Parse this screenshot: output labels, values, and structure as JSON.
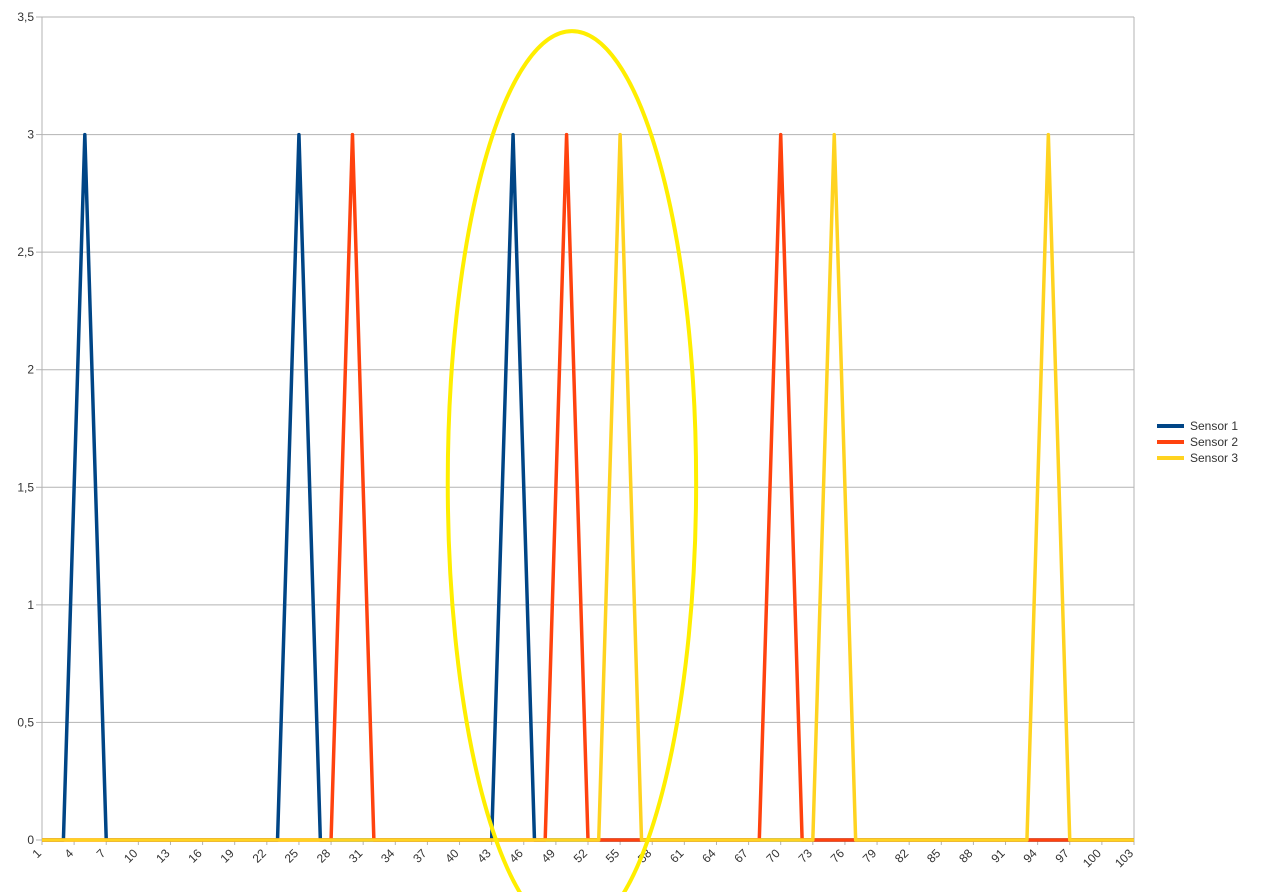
{
  "chart_data": {
    "type": "line",
    "title": "",
    "xlabel": "",
    "ylabel": "",
    "xlim": [
      1,
      103
    ],
    "ylim": [
      0,
      3.5
    ],
    "grid": "horizontal",
    "legend_position": "right",
    "x_tick_labels": [
      "1",
      "4",
      "7",
      "10",
      "13",
      "16",
      "19",
      "22",
      "25",
      "28",
      "31",
      "34",
      "37",
      "40",
      "43",
      "46",
      "49",
      "52",
      "55",
      "58",
      "61",
      "64",
      "67",
      "70",
      "73",
      "76",
      "79",
      "82",
      "85",
      "88",
      "91",
      "94",
      "97",
      "100",
      "103"
    ],
    "y_tick_labels": [
      "0",
      "0,5",
      "1",
      "1,5",
      "2",
      "2,5",
      "3",
      "3,5"
    ],
    "y_tick_values": [
      0,
      0.5,
      1,
      1.5,
      2,
      2.5,
      3,
      3.5
    ],
    "series": [
      {
        "name": "Sensor 1",
        "color": "#004586",
        "points": [
          [
            1,
            0
          ],
          [
            2,
            0
          ],
          [
            3,
            0
          ],
          [
            5,
            3
          ],
          [
            7,
            0
          ],
          [
            8,
            0
          ],
          [
            22,
            0
          ],
          [
            23,
            0
          ],
          [
            25,
            3
          ],
          [
            27,
            0
          ],
          [
            28,
            0
          ],
          [
            42,
            0
          ],
          [
            43,
            0
          ],
          [
            45,
            3
          ],
          [
            47,
            0
          ],
          [
            48,
            0
          ],
          [
            103,
            0
          ]
        ]
      },
      {
        "name": "Sensor 2",
        "color": "#ff420e",
        "points": [
          [
            1,
            0
          ],
          [
            27,
            0
          ],
          [
            28,
            0
          ],
          [
            30,
            3
          ],
          [
            32,
            0
          ],
          [
            33,
            0
          ],
          [
            47,
            0
          ],
          [
            48,
            0
          ],
          [
            50,
            3
          ],
          [
            52,
            0
          ],
          [
            53,
            0
          ],
          [
            67,
            0
          ],
          [
            68,
            0
          ],
          [
            70,
            3
          ],
          [
            72,
            0
          ],
          [
            73,
            0
          ],
          [
            103,
            0
          ]
        ]
      },
      {
        "name": "Sensor 3",
        "color": "#ffd320",
        "points": [
          [
            1,
            0
          ],
          [
            52,
            0
          ],
          [
            53,
            0
          ],
          [
            55,
            3
          ],
          [
            57,
            0
          ],
          [
            58,
            0
          ],
          [
            72,
            0
          ],
          [
            73,
            0
          ],
          [
            75,
            3
          ],
          [
            77,
            0
          ],
          [
            78,
            0
          ],
          [
            92,
            0
          ],
          [
            93,
            0
          ],
          [
            95,
            3
          ],
          [
            97,
            0
          ],
          [
            98,
            0
          ],
          [
            103,
            0
          ]
        ]
      }
    ],
    "annotation": {
      "shape": "ellipse",
      "color": "#ffee00",
      "center_x": 50.5,
      "center_y": 1.52,
      "radius_x": 11.6,
      "radius_y": 1.92
    }
  }
}
